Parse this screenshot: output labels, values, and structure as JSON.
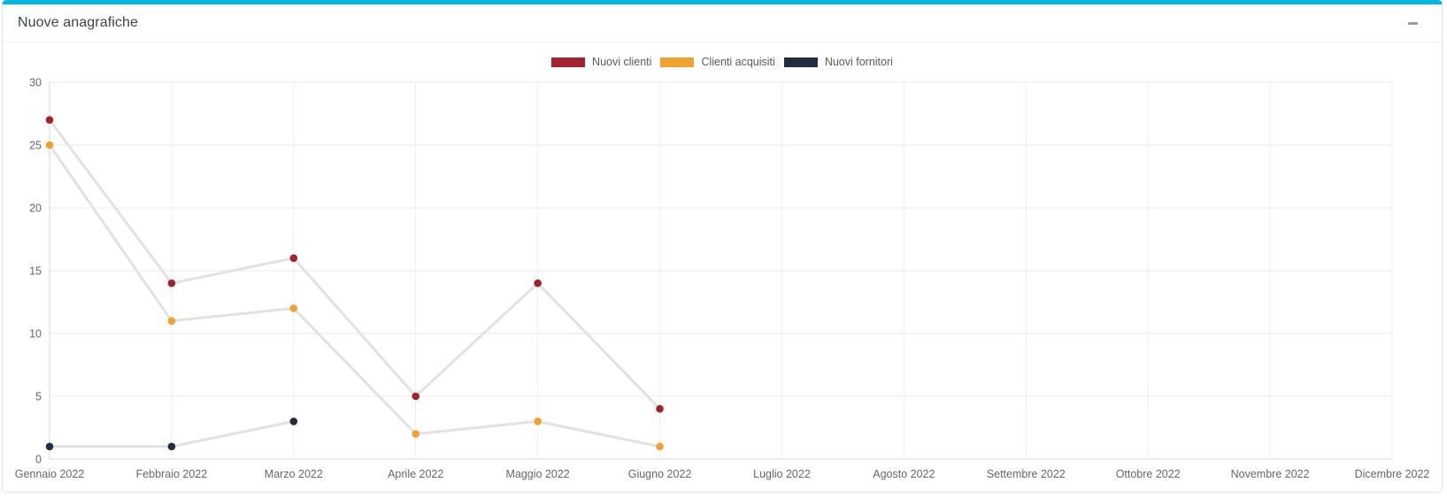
{
  "card": {
    "title": "Nuove anagrafiche",
    "collapse_tooltip": "Riduci"
  },
  "theme": {
    "accent_color": "#00b7e0",
    "card_border_color": "#e2e2e2",
    "series_connector_color": "#e2e2e2",
    "collapse_icon_color": "#909cab",
    "grid_color": "#e8e8e8",
    "axis_color": "#d7d7d7",
    "tick_text_color": "#666666"
  },
  "chart_data": {
    "type": "line",
    "title": "Nuove anagrafiche",
    "xlabel": "",
    "ylabel": "",
    "categories": [
      "Gennaio 2022",
      "Febbraio 2022",
      "Marzo 2022",
      "Aprile 2022",
      "Maggio 2022",
      "Giugno 2022",
      "Luglio 2022",
      "Agosto 2022",
      "Settembre 2022",
      "Ottobre 2022",
      "Novembre 2022",
      "Dicembre 2022"
    ],
    "series": [
      {
        "name": "Nuovi clienti",
        "color": "#a2232f",
        "values": [
          27,
          14,
          16,
          5,
          14,
          4,
          null,
          null,
          null,
          null,
          null,
          null
        ]
      },
      {
        "name": "Clienti acquisiti",
        "color": "#f0a22e",
        "values": [
          25,
          11,
          12,
          2,
          3,
          1,
          null,
          null,
          null,
          null,
          null,
          null
        ]
      },
      {
        "name": "Nuovi fornitori",
        "color": "#232d3f",
        "values": [
          1,
          1,
          3,
          null,
          null,
          null,
          null,
          null,
          null,
          null,
          null,
          null
        ]
      }
    ],
    "ylim": [
      0,
      30
    ],
    "yticks": [
      0,
      5,
      10,
      15,
      20,
      25,
      30
    ],
    "grid": true,
    "legend_position": "top center",
    "marker": "circle",
    "marker_radius": 4.3,
    "line_style": "light-gray connectors with colored point markers"
  }
}
